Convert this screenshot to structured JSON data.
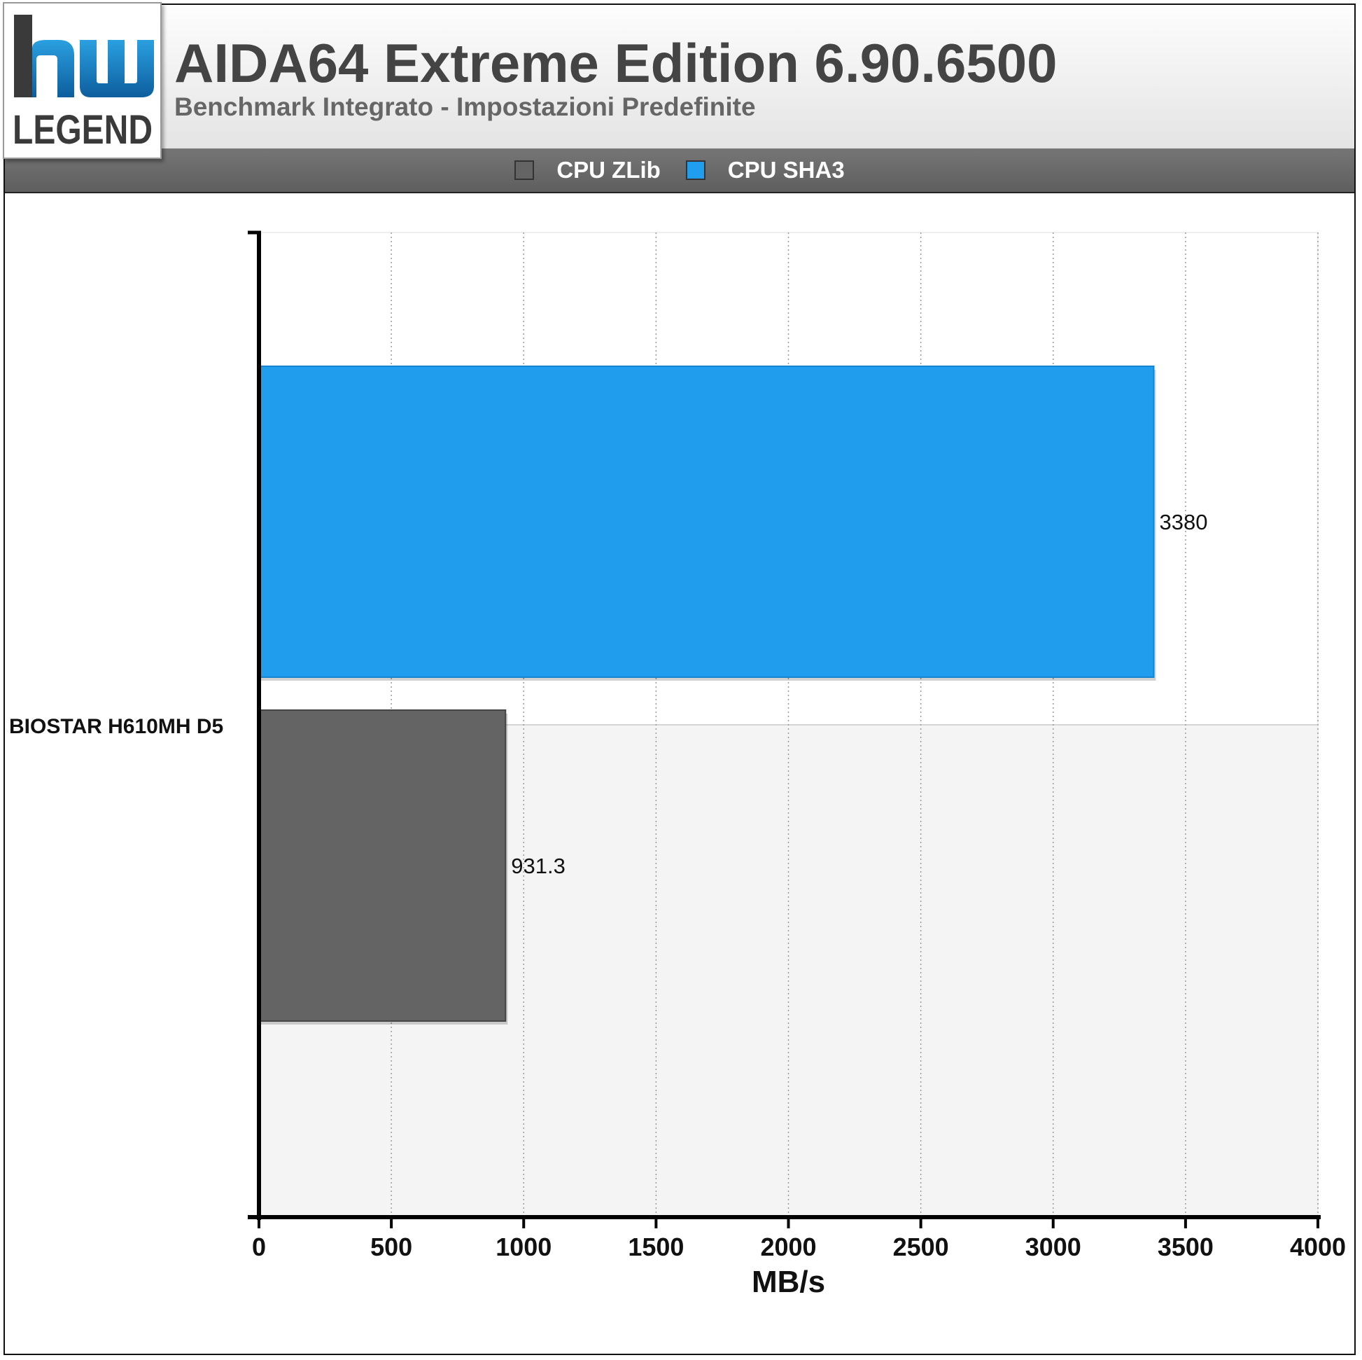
{
  "header": {
    "title": "AIDA64 Extreme Edition 6.90.6500",
    "subtitle": "Benchmark Integrato - Impostazioni Predefinite"
  },
  "logo": {
    "mark": "hw",
    "text": "LEGEND"
  },
  "colors": {
    "zlib": "#646464",
    "sha3": "#219ded",
    "logo_blue": "#1a86c8",
    "logo_dark": "#3a3a3a"
  },
  "chart_data": {
    "type": "bar",
    "orientation": "horizontal",
    "categories": [
      "BIOSTAR H610MH D5"
    ],
    "series": [
      {
        "name": "CPU ZLib",
        "values": [
          931.3
        ],
        "value_labels": [
          "931.3"
        ]
      },
      {
        "name": "CPU SHA3",
        "values": [
          3380
        ],
        "value_labels": [
          "3380"
        ]
      }
    ],
    "xlabel": "MB/s",
    "ylabel": "",
    "xlim": [
      0,
      4000
    ],
    "xticks": [
      0,
      500,
      1000,
      1500,
      2000,
      2500,
      3000,
      3500,
      4000
    ],
    "grid": true,
    "legend_position": "top-center"
  }
}
